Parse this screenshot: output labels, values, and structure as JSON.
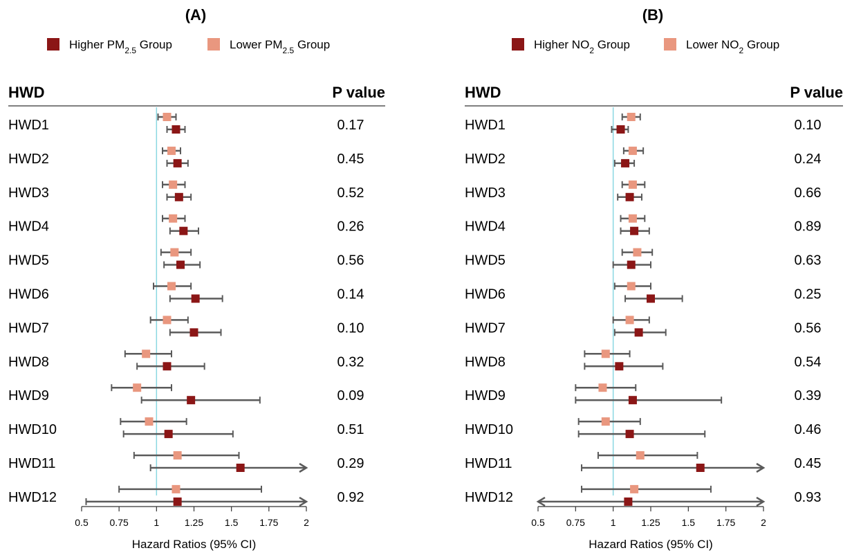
{
  "chart_data": [
    {
      "type": "forest",
      "title": "(A)",
      "legend": [
        {
          "prefix": "Higher PM",
          "sub": "2.5",
          "suffix": " Group",
          "color": "#8b1616"
        },
        {
          "prefix": "Lower PM",
          "sub": "2.5",
          "suffix": " Group",
          "color": "#e9977f"
        }
      ],
      "row_header": "HWD",
      "pvalue_header": "P value",
      "xlabel": "Hazard Ratios (95% CI)",
      "xticks": [
        "0.5",
        "0.75",
        "1",
        "1.25",
        "1.5",
        "1.75",
        "2"
      ],
      "xlim": [
        0.5,
        2.0
      ],
      "reference_line": 1.0,
      "rows": [
        {
          "label": "HWD1",
          "p": "0.17",
          "lower": {
            "est": 1.07,
            "lo": 1.01,
            "hi": 1.13
          },
          "higher": {
            "est": 1.13,
            "lo": 1.07,
            "hi": 1.19
          }
        },
        {
          "label": "HWD2",
          "p": "0.45",
          "lower": {
            "est": 1.1,
            "lo": 1.04,
            "hi": 1.16
          },
          "higher": {
            "est": 1.14,
            "lo": 1.07,
            "hi": 1.21
          }
        },
        {
          "label": "HWD3",
          "p": "0.52",
          "lower": {
            "est": 1.11,
            "lo": 1.04,
            "hi": 1.19
          },
          "higher": {
            "est": 1.15,
            "lo": 1.07,
            "hi": 1.23
          }
        },
        {
          "label": "HWD4",
          "p": "0.26",
          "lower": {
            "est": 1.11,
            "lo": 1.04,
            "hi": 1.19
          },
          "higher": {
            "est": 1.18,
            "lo": 1.09,
            "hi": 1.28
          }
        },
        {
          "label": "HWD5",
          "p": "0.56",
          "lower": {
            "est": 1.12,
            "lo": 1.03,
            "hi": 1.23
          },
          "higher": {
            "est": 1.16,
            "lo": 1.05,
            "hi": 1.29
          }
        },
        {
          "label": "HWD6",
          "p": "0.14",
          "lower": {
            "est": 1.1,
            "lo": 0.98,
            "hi": 1.23
          },
          "higher": {
            "est": 1.26,
            "lo": 1.09,
            "hi": 1.44
          }
        },
        {
          "label": "HWD7",
          "p": "0.10",
          "lower": {
            "est": 1.07,
            "lo": 0.96,
            "hi": 1.21
          },
          "higher": {
            "est": 1.25,
            "lo": 1.09,
            "hi": 1.43
          }
        },
        {
          "label": "HWD8",
          "p": "0.32",
          "lower": {
            "est": 0.93,
            "lo": 0.79,
            "hi": 1.1
          },
          "higher": {
            "est": 1.07,
            "lo": 0.87,
            "hi": 1.32
          }
        },
        {
          "label": "HWD9",
          "p": "0.09",
          "lower": {
            "est": 0.87,
            "lo": 0.7,
            "hi": 1.1
          },
          "higher": {
            "est": 1.23,
            "lo": 0.9,
            "hi": 1.69
          }
        },
        {
          "label": "HWD10",
          "p": "0.51",
          "lower": {
            "est": 0.95,
            "lo": 0.76,
            "hi": 1.2
          },
          "higher": {
            "est": 1.08,
            "lo": 0.78,
            "hi": 1.51
          }
        },
        {
          "label": "HWD11",
          "p": "0.29",
          "lower": {
            "est": 1.14,
            "lo": 0.85,
            "hi": 1.55
          },
          "higher": {
            "est": 1.56,
            "lo": 0.96,
            "hi": 2.0,
            "arrow_right": true
          }
        },
        {
          "label": "HWD12",
          "p": "0.92",
          "lower": {
            "est": 1.13,
            "lo": 0.75,
            "hi": 1.7
          },
          "higher": {
            "est": 1.14,
            "lo": 0.53,
            "hi": 2.0,
            "arrow_right": true
          }
        }
      ]
    },
    {
      "type": "forest",
      "title": "(B)",
      "legend": [
        {
          "prefix": "Higher NO",
          "sub": "2",
          "suffix": " Group",
          "color": "#8b1616"
        },
        {
          "prefix": "Lower NO",
          "sub": "2",
          "suffix": " Group",
          "color": "#e9977f"
        }
      ],
      "row_header": "HWD",
      "pvalue_header": "P value",
      "xlabel": "Hazard Ratios (95% CI)",
      "xticks": [
        "0.5",
        "0.75",
        "1",
        "1.25",
        "1.5",
        "1.75",
        "2"
      ],
      "xlim": [
        0.5,
        2.0
      ],
      "reference_line": 1.0,
      "rows": [
        {
          "label": "HWD1",
          "p": "0.10",
          "lower": {
            "est": 1.12,
            "lo": 1.06,
            "hi": 1.18
          },
          "higher": {
            "est": 1.05,
            "lo": 0.99,
            "hi": 1.1
          }
        },
        {
          "label": "HWD2",
          "p": "0.24",
          "lower": {
            "est": 1.13,
            "lo": 1.07,
            "hi": 1.2
          },
          "higher": {
            "est": 1.08,
            "lo": 1.01,
            "hi": 1.14
          }
        },
        {
          "label": "HWD3",
          "p": "0.66",
          "lower": {
            "est": 1.13,
            "lo": 1.06,
            "hi": 1.21
          },
          "higher": {
            "est": 1.11,
            "lo": 1.03,
            "hi": 1.19
          }
        },
        {
          "label": "HWD4",
          "p": "0.89",
          "lower": {
            "est": 1.13,
            "lo": 1.05,
            "hi": 1.21
          },
          "higher": {
            "est": 1.14,
            "lo": 1.05,
            "hi": 1.24
          }
        },
        {
          "label": "HWD5",
          "p": "0.63",
          "lower": {
            "est": 1.16,
            "lo": 1.06,
            "hi": 1.26
          },
          "higher": {
            "est": 1.12,
            "lo": 1.0,
            "hi": 1.25
          }
        },
        {
          "label": "HWD6",
          "p": "0.25",
          "lower": {
            "est": 1.12,
            "lo": 1.01,
            "hi": 1.25
          },
          "higher": {
            "est": 1.25,
            "lo": 1.08,
            "hi": 1.46
          }
        },
        {
          "label": "HWD7",
          "p": "0.56",
          "lower": {
            "est": 1.11,
            "lo": 1.0,
            "hi": 1.24
          },
          "higher": {
            "est": 1.17,
            "lo": 1.01,
            "hi": 1.35
          }
        },
        {
          "label": "HWD8",
          "p": "0.54",
          "lower": {
            "est": 0.95,
            "lo": 0.81,
            "hi": 1.11
          },
          "higher": {
            "est": 1.04,
            "lo": 0.81,
            "hi": 1.33
          }
        },
        {
          "label": "HWD9",
          "p": "0.39",
          "lower": {
            "est": 0.93,
            "lo": 0.75,
            "hi": 1.15
          },
          "higher": {
            "est": 1.13,
            "lo": 0.75,
            "hi": 1.72
          }
        },
        {
          "label": "HWD10",
          "p": "0.46",
          "lower": {
            "est": 0.95,
            "lo": 0.77,
            "hi": 1.18
          },
          "higher": {
            "est": 1.11,
            "lo": 0.77,
            "hi": 1.61
          }
        },
        {
          "label": "HWD11",
          "p": "0.45",
          "lower": {
            "est": 1.18,
            "lo": 0.9,
            "hi": 1.56
          },
          "higher": {
            "est": 1.58,
            "lo": 0.79,
            "hi": 2.0,
            "arrow_right": true
          }
        },
        {
          "label": "HWD12",
          "p": "0.93",
          "lower": {
            "est": 1.14,
            "lo": 0.79,
            "hi": 1.65
          },
          "higher": {
            "est": 1.1,
            "lo": 0.5,
            "hi": 2.0,
            "arrow_left": true,
            "arrow_right": true
          }
        }
      ]
    }
  ]
}
